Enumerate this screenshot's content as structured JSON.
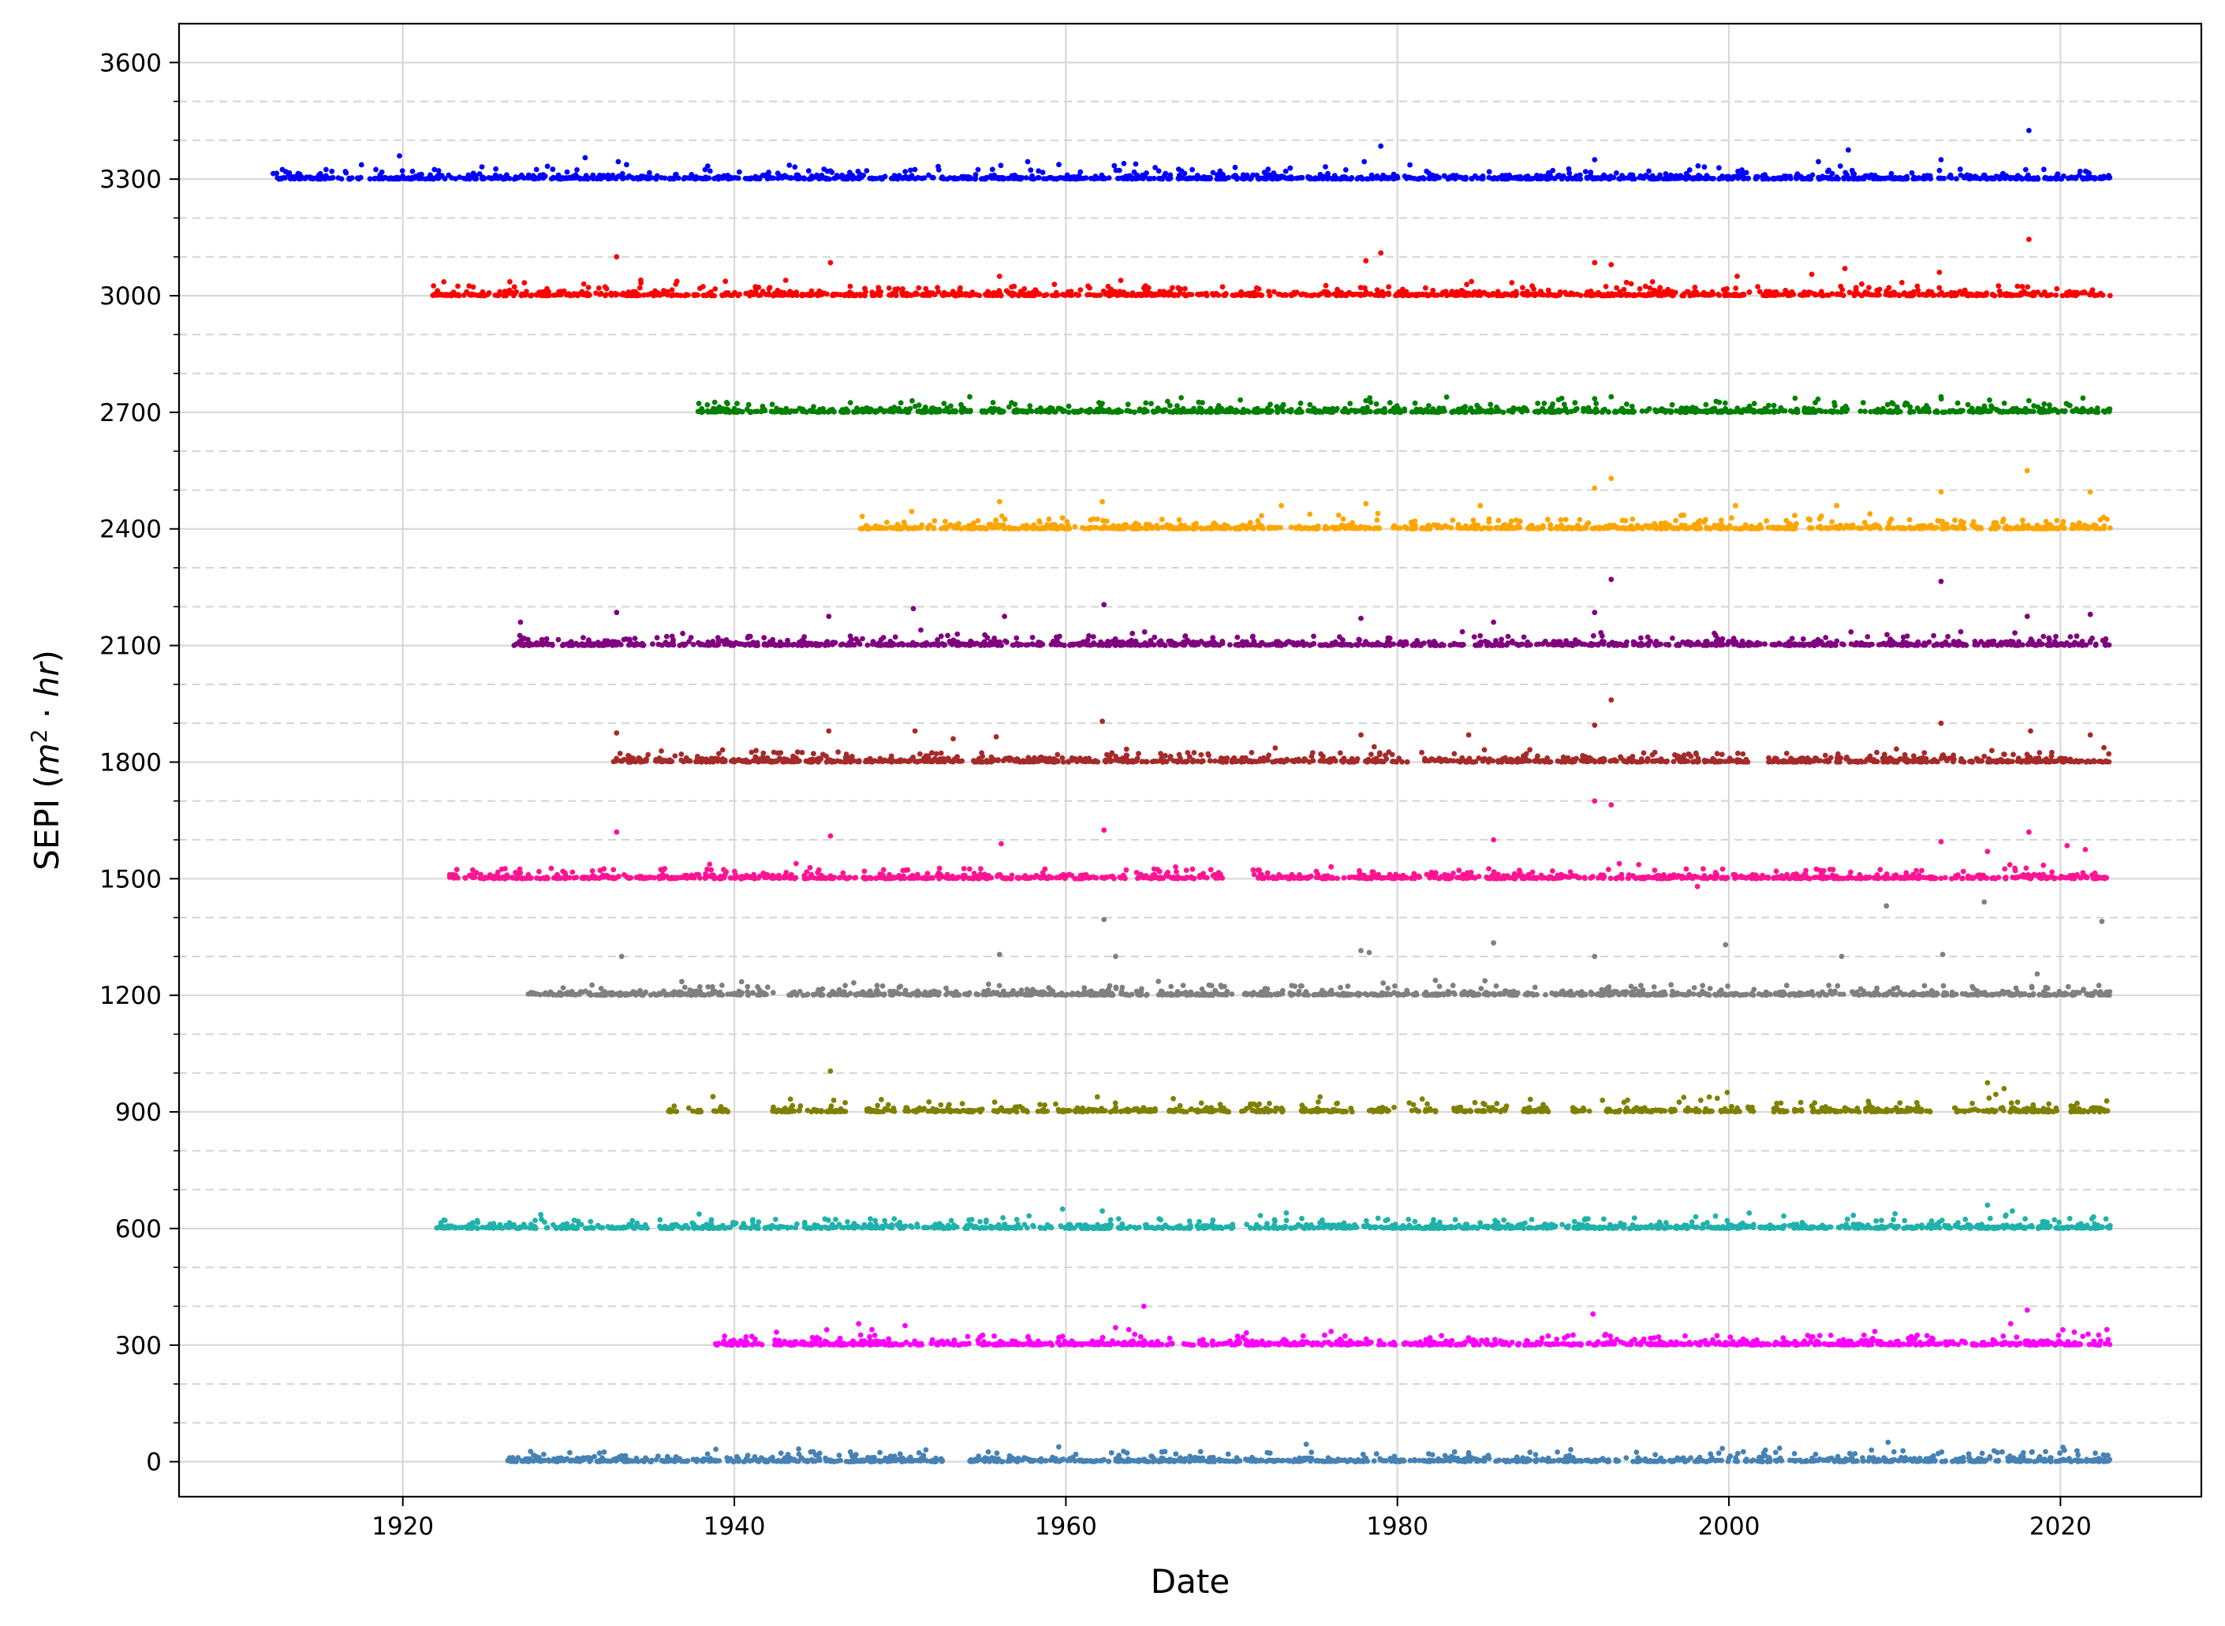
{
  "chart_data": {
    "type": "scatter",
    "title": "",
    "xlabel": "Date",
    "ylabel": "SEPI (m² · hr)",
    "ylabel_parts": {
      "prefix": "SEPI (",
      "m": "m",
      "sup": "2",
      "dot": " · ",
      "hr": "hr",
      "suffix": ")"
    },
    "xlim": [
      1906.5,
      2028.5
    ],
    "ylim": [
      -90,
      3700
    ],
    "x_ticks": [
      1920,
      1940,
      1960,
      1980,
      2000,
      2020
    ],
    "x_tick_labels": [
      "1920",
      "1940",
      "1960",
      "1980",
      "2000",
      "2020"
    ],
    "y_ticks": [
      0,
      300,
      600,
      900,
      1200,
      1500,
      1800,
      2100,
      2400,
      2700,
      3000,
      3300,
      3600
    ],
    "y_tick_labels": [
      "0",
      "300",
      "600",
      "900",
      "1200",
      "1500",
      "1800",
      "2100",
      "2400",
      "2700",
      "3000",
      "3300",
      "3600"
    ],
    "y_minor_grid": [
      100,
      200,
      400,
      500,
      700,
      800,
      1000,
      1100,
      1300,
      1400,
      1600,
      1700,
      1900,
      2000,
      2200,
      2300,
      2500,
      2600,
      2800,
      2900,
      3100,
      3200,
      3400,
      3500
    ],
    "grid": {
      "major": true,
      "minor_y_dashed": true
    },
    "legend": "none",
    "series": [
      {
        "offset": 0,
        "color": "#4682b4",
        "start": 1926.3,
        "end": 2023.0,
        "gaps": [
          [
            1952.6,
            1954.2
          ]
        ],
        "outliers": [
          [
            1974.5,
            45
          ],
          [
            2009.6,
            50
          ],
          [
            2002.2,
            30
          ],
          [
            2008.6,
            30
          ],
          [
            2010.5,
            28
          ],
          [
            1947.0,
            25
          ],
          [
            1950.0,
            20
          ],
          [
            2016.0,
            28
          ],
          [
            2021.0,
            28
          ]
        ]
      },
      {
        "offset": 300,
        "color": "#ff00ff",
        "start": 1938.8,
        "end": 2023.0,
        "gaps": [
          [
            1941.7,
            1942.3
          ],
          [
            1966.5,
            1967.1
          ]
        ],
        "outliers": [
          [
            1964.7,
            400
          ],
          [
            2018.0,
            390
          ],
          [
            1991.8,
            380
          ],
          [
            1947.5,
            355
          ],
          [
            1950.3,
            350
          ],
          [
            1963.0,
            345
          ],
          [
            1963.8,
            340
          ],
          [
            1948.3,
            340
          ],
          [
            2017.0,
            355
          ],
          [
            2022.8,
            340
          ],
          [
            1976.0,
            335
          ],
          [
            2008.8,
            335
          ]
        ]
      },
      {
        "offset": 600,
        "color": "#20b2aa",
        "start": 1922.0,
        "end": 2023.0,
        "gaps": [
          [
            1934.8,
            1935.5
          ],
          [
            1943.8,
            1944.2
          ],
          [
            1970.2,
            1970.9
          ]
        ],
        "outliers": [
          [
            1959.8,
            650
          ],
          [
            1962.2,
            645
          ],
          [
            1973.3,
            640
          ],
          [
            2015.6,
            660
          ],
          [
            2017.1,
            645
          ],
          [
            2022.0,
            630
          ],
          [
            1998.0,
            630
          ],
          [
            1922.3,
            615
          ],
          [
            1948.2,
            625
          ],
          [
            1991.5,
            625
          ]
        ]
      },
      {
        "offset": 900,
        "color": "#808000",
        "start": 1936.0,
        "end": 2023.0,
        "gaps": [
          [
            1936.6,
            1937.2
          ],
          [
            1938.0,
            1938.6
          ],
          [
            1939.7,
            1942.3
          ],
          [
            1944.1,
            1944.4
          ],
          [
            1946.7,
            1948.0
          ],
          [
            1949.7,
            1950.3
          ],
          [
            1955.0,
            1955.6
          ],
          [
            1957.7,
            1958.2
          ],
          [
            1965.4,
            1965.9
          ],
          [
            1969.9,
            1970.6
          ],
          [
            1973.1,
            1974.2
          ],
          [
            1977.5,
            1978.3
          ],
          [
            1979.9,
            1980.7
          ],
          [
            1982.4,
            1983.2
          ],
          [
            1986.6,
            1987.6
          ],
          [
            1989.1,
            1990.4
          ],
          [
            1991.6,
            1992.1
          ],
          [
            1999.1,
            1999.5
          ],
          [
            2000.7,
            2001.1
          ],
          [
            2001.6,
            2002.6
          ],
          [
            2003.6,
            2003.9
          ],
          [
            2012.3,
            2013.6
          ],
          [
            2016.6,
            2016.9
          ],
          [
            2019.8,
            2020.6
          ]
        ],
        "outliers": [
          [
            1945.8,
            1005
          ],
          [
            2015.6,
            975
          ],
          [
            2016.6,
            960
          ],
          [
            1999.9,
            950
          ],
          [
            1998.3,
            930
          ],
          [
            1999.3,
            935
          ],
          [
            1997.0,
            925
          ],
          [
            2016.1,
            945
          ],
          [
            1946.0,
            930
          ]
        ]
      },
      {
        "offset": 1200,
        "color": "#808080",
        "start": 1927.5,
        "end": 2023.0,
        "gaps": [
          [
            1942.4,
            1943.3
          ],
          [
            1964.9,
            1965.5
          ],
          [
            1970.1,
            1970.6
          ]
        ],
        "outliers": [
          [
            1962.3,
            1395
          ],
          [
            2022.5,
            1390
          ],
          [
            2015.4,
            1440
          ],
          [
            2009.5,
            1430
          ],
          [
            1985.8,
            1335
          ],
          [
            1999.8,
            1330
          ],
          [
            1977.8,
            1315
          ],
          [
            1978.3,
            1310
          ],
          [
            1963.0,
            1300
          ],
          [
            1956.0,
            1305
          ],
          [
            1933.2,
            1300
          ],
          [
            2012.9,
            1305
          ],
          [
            2006.8,
            1300
          ],
          [
            1991.9,
            1300
          ],
          [
            2018.6,
            1255
          ]
        ]
      },
      {
        "offset": 1500,
        "color": "#ff1493",
        "start": 1922.8,
        "end": 2023.0,
        "gaps": [
          [
            1969.5,
            1971.3
          ],
          [
            1943.9,
            1944.2
          ]
        ],
        "outliers": [
          [
            1991.9,
            1700
          ],
          [
            1992.9,
            1690
          ],
          [
            1962.3,
            1625
          ],
          [
            1932.9,
            1620
          ],
          [
            2018.1,
            1620
          ],
          [
            1945.8,
            1610
          ],
          [
            1985.8,
            1600
          ],
          [
            2012.8,
            1595
          ],
          [
            2020.4,
            1585
          ],
          [
            1956.1,
            1590
          ],
          [
            1998.1,
            1480
          ],
          [
            2015.6,
            1570
          ],
          [
            2021.5,
            1575
          ]
        ]
      },
      {
        "offset": 1800,
        "color": "#a52a2a",
        "start": 1932.7,
        "end": 2023.0,
        "gaps": [
          [
            1980.6,
            1981.3
          ],
          [
            2001.2,
            2002.4
          ]
        ],
        "outliers": [
          [
            1992.9,
            1960
          ],
          [
            1962.2,
            1905
          ],
          [
            2012.8,
            1900
          ],
          [
            1991.9,
            1895
          ],
          [
            1932.9,
            1875
          ],
          [
            1950.9,
            1880
          ],
          [
            1945.7,
            1880
          ],
          [
            2018.2,
            1880
          ],
          [
            1977.8,
            1870
          ],
          [
            1984.3,
            1870
          ],
          [
            1955.8,
            1865
          ],
          [
            2021.8,
            1870
          ],
          [
            1953.2,
            1860
          ]
        ]
      },
      {
        "offset": 2100,
        "color": "#800080",
        "start": 1926.7,
        "end": 2023.0,
        "gaps": [
          [
            1934.6,
            1935.0
          ],
          [
            1958.7,
            1959.1
          ]
        ],
        "outliers": [
          [
            1992.9,
            2270
          ],
          [
            2012.8,
            2265
          ],
          [
            1962.3,
            2205
          ],
          [
            1950.8,
            2195
          ],
          [
            1991.9,
            2185
          ],
          [
            1932.9,
            2185
          ],
          [
            1945.7,
            2175
          ],
          [
            1977.8,
            2170
          ],
          [
            2018.0,
            2175
          ],
          [
            2021.8,
            2180
          ],
          [
            1927.1,
            2160
          ],
          [
            1956.3,
            2175
          ],
          [
            1985.8,
            2160
          ]
        ]
      },
      {
        "offset": 2400,
        "color": "#ffa500",
        "start": 1947.5,
        "end": 2023.0,
        "gaps": [
          [
            1979.3,
            1979.7
          ]
        ],
        "outliers": [
          [
            2018.0,
            2550
          ],
          [
            1992.9,
            2530
          ],
          [
            1991.9,
            2505
          ],
          [
            2012.8,
            2495
          ],
          [
            2021.8,
            2495
          ],
          [
            1962.2,
            2470
          ],
          [
            1956.0,
            2470
          ],
          [
            1978.1,
            2465
          ],
          [
            1973.0,
            2460
          ],
          [
            2000.4,
            2460
          ],
          [
            2006.5,
            2460
          ],
          [
            1950.7,
            2445
          ],
          [
            1985.0,
            2460
          ]
        ]
      },
      {
        "offset": 2700,
        "color": "#008000",
        "start": 1937.8,
        "end": 2023.0,
        "gaps": [
          [
            1954.3,
            1954.9
          ]
        ],
        "outliers": [
          [
            1954.2,
            2740
          ],
          [
            2012.8,
            2740
          ],
          [
            1991.9,
            2735
          ],
          [
            1992.9,
            2740
          ],
          [
            1978.1,
            2730
          ],
          [
            2018.1,
            2730
          ],
          [
            1947.0,
            2725
          ],
          [
            2008.1,
            2725
          ],
          [
            1962.0,
            2725
          ]
        ]
      },
      {
        "offset": 3000,
        "color": "#ff0000",
        "start": 1921.8,
        "end": 2023.0,
        "gaps": [
          [
            1948.9,
            1949.3
          ]
        ],
        "outliers": [
          [
            1932.9,
            3100
          ],
          [
            1979.0,
            3110
          ],
          [
            1978.1,
            3090
          ],
          [
            2018.1,
            3145
          ],
          [
            1945.8,
            3085
          ],
          [
            1991.9,
            3085
          ],
          [
            1992.9,
            3080
          ],
          [
            2007.0,
            3070
          ],
          [
            2012.7,
            3060
          ],
          [
            2005.0,
            3055
          ],
          [
            2000.5,
            3050
          ],
          [
            1956.0,
            3050
          ]
        ]
      },
      {
        "offset": 3300,
        "color": "#0000ff",
        "start": 1911.8,
        "end": 2023.0,
        "gaps": [],
        "outliers": [
          [
            2018.1,
            3425
          ],
          [
            1979.0,
            3385
          ],
          [
            2007.2,
            3375
          ],
          [
            1919.8,
            3360
          ],
          [
            1931.0,
            3355
          ],
          [
            1991.9,
            3350
          ],
          [
            2012.8,
            3350
          ],
          [
            1933.0,
            3345
          ],
          [
            1957.7,
            3345
          ],
          [
            1978.0,
            3345
          ],
          [
            2005.4,
            3345
          ],
          [
            1963.5,
            3340
          ]
        ]
      }
    ]
  }
}
